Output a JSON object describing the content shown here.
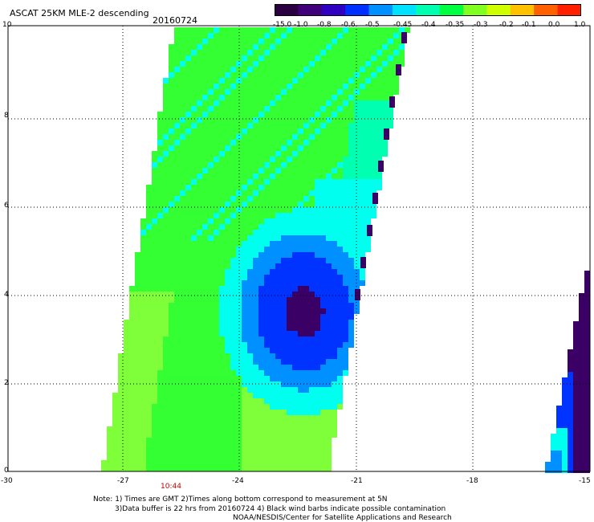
{
  "header": {
    "title": "ASCAT 25KM MLE-2 descending",
    "date": "20160724"
  },
  "colorbar": {
    "labels": [
      "-15.0",
      "-1.0",
      "-0.8",
      "-0.6",
      "-0.5",
      "-0.45",
      "-0.4",
      "-0.35",
      "-0.3",
      "-0.2",
      "-0.1",
      "0.0",
      "1.0"
    ],
    "colors": [
      "#2a0040",
      "#40007a",
      "#3000c0",
      "#0030ff",
      "#0090ff",
      "#00e0ff",
      "#00ffb0",
      "#00ff40",
      "#80ff20",
      "#d0ff00",
      "#ffc000",
      "#ff6000",
      "#ff2000"
    ]
  },
  "map": {
    "y_axis_labels": [
      "10",
      "8",
      "6",
      "4",
      "2",
      "0"
    ],
    "x_axis_labels": [
      "-30",
      "-27",
      "-24",
      "-21",
      "-18",
      "-15"
    ],
    "time_label": "10:44",
    "colors": {
      "green_light": "#7fff3a",
      "green": "#33ff33",
      "cyan": "#00ffee",
      "blue": "#0033ff",
      "dark": "#3a0066",
      "grid": "#000000"
    }
  },
  "notes": {
    "line1": "Note: 1) Times are GMT 2)Times along bottom correspond to measurement at 5N",
    "line2": "3)Data buffer is 22 hrs from 20160724 4) Black wind barbs indicate possible contamination",
    "line3": "NOAA/NESDIS/Center for Satellite Applications and Research"
  }
}
